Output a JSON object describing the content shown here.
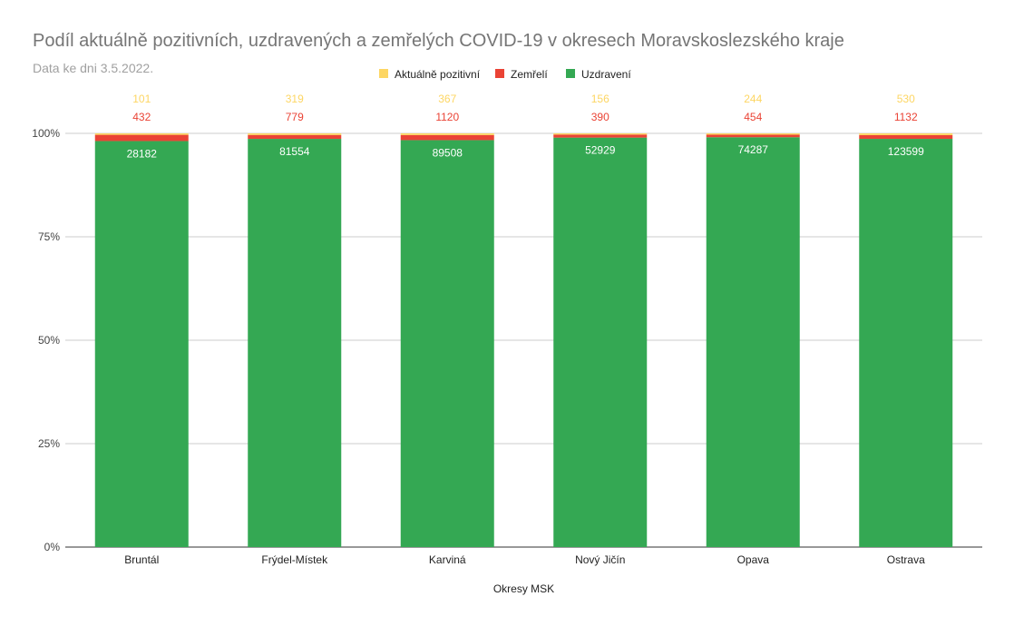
{
  "title": "Podíl aktuálně pozitivních, uzdravených a zemřelých COVID-19 v okresech Moravskoslezského kraje",
  "subtitle": "Data ke dni 3.5.2022.",
  "chart_data": {
    "type": "bar",
    "stacked": "percent",
    "categories": [
      "Bruntál",
      "Frýdel-Místek",
      "Karviná",
      "Nový Jičín",
      "Opava",
      "Ostrava"
    ],
    "series": [
      {
        "name": "Uzdravení",
        "color": "#34a853",
        "values": [
          28182,
          81554,
          89508,
          52929,
          74287,
          123599
        ]
      },
      {
        "name": "Zemřelí",
        "color": "#ea4335",
        "values": [
          432,
          779,
          1120,
          390,
          454,
          1132
        ]
      },
      {
        "name": "Aktuálně pozitivní",
        "color": "#fdd663",
        "values": [
          101,
          319,
          367,
          156,
          244,
          530
        ]
      }
    ],
    "legend_order": [
      "Aktuálně pozitivní",
      "Zemřelí",
      "Uzdravení"
    ],
    "legend_position": "top",
    "xlabel": "Okresy MSK",
    "ylabel": "",
    "y_ticks": [
      "0%",
      "25%",
      "50%",
      "75%",
      "100%"
    ],
    "ylim": [
      0,
      100
    ],
    "grid": true,
    "colors": {
      "positive_label": "#fdd663",
      "deaths_label": "#ea4335",
      "recovered_label": "#ffffff"
    }
  }
}
